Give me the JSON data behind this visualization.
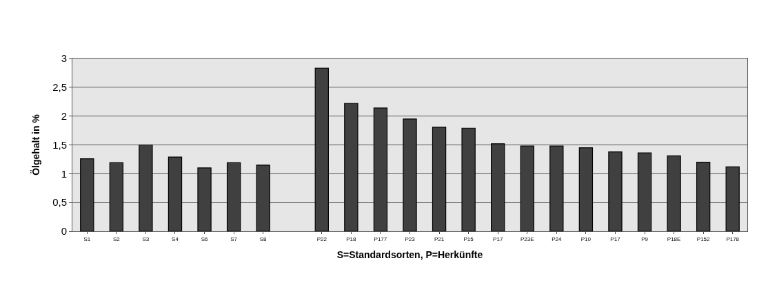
{
  "chart_data": {
    "type": "bar",
    "xlabel": "S=Standardsorten, P=Herkünfte",
    "ylabel": "Ölgehalt in %",
    "categories": [
      "S1",
      "S2",
      "S3",
      "S4",
      "S6",
      "S7",
      "S8",
      null,
      "P22",
      "P18",
      "P177",
      "P23",
      "P21",
      "P15",
      "P17",
      "P23E",
      "P24",
      "P10",
      "P17",
      "P9",
      "P18E",
      "P152",
      "P178"
    ],
    "values": [
      1.26,
      1.19,
      1.5,
      1.29,
      1.1,
      1.19,
      1.15,
      null,
      2.83,
      2.22,
      2.14,
      1.95,
      1.81,
      1.79,
      1.52,
      1.48,
      1.48,
      1.45,
      1.38,
      1.36,
      1.31,
      1.2,
      1.12
    ],
    "color": "#404040",
    "ylim": [
      0,
      3
    ],
    "yticks": [
      0,
      {
        "value": 0.5,
        "label": "0,5"
      },
      1,
      {
        "value": 1.5,
        "label": "1,5"
      },
      2,
      {
        "value": 2.5,
        "label": "2,5"
      },
      3
    ],
    "grid": "y"
  }
}
